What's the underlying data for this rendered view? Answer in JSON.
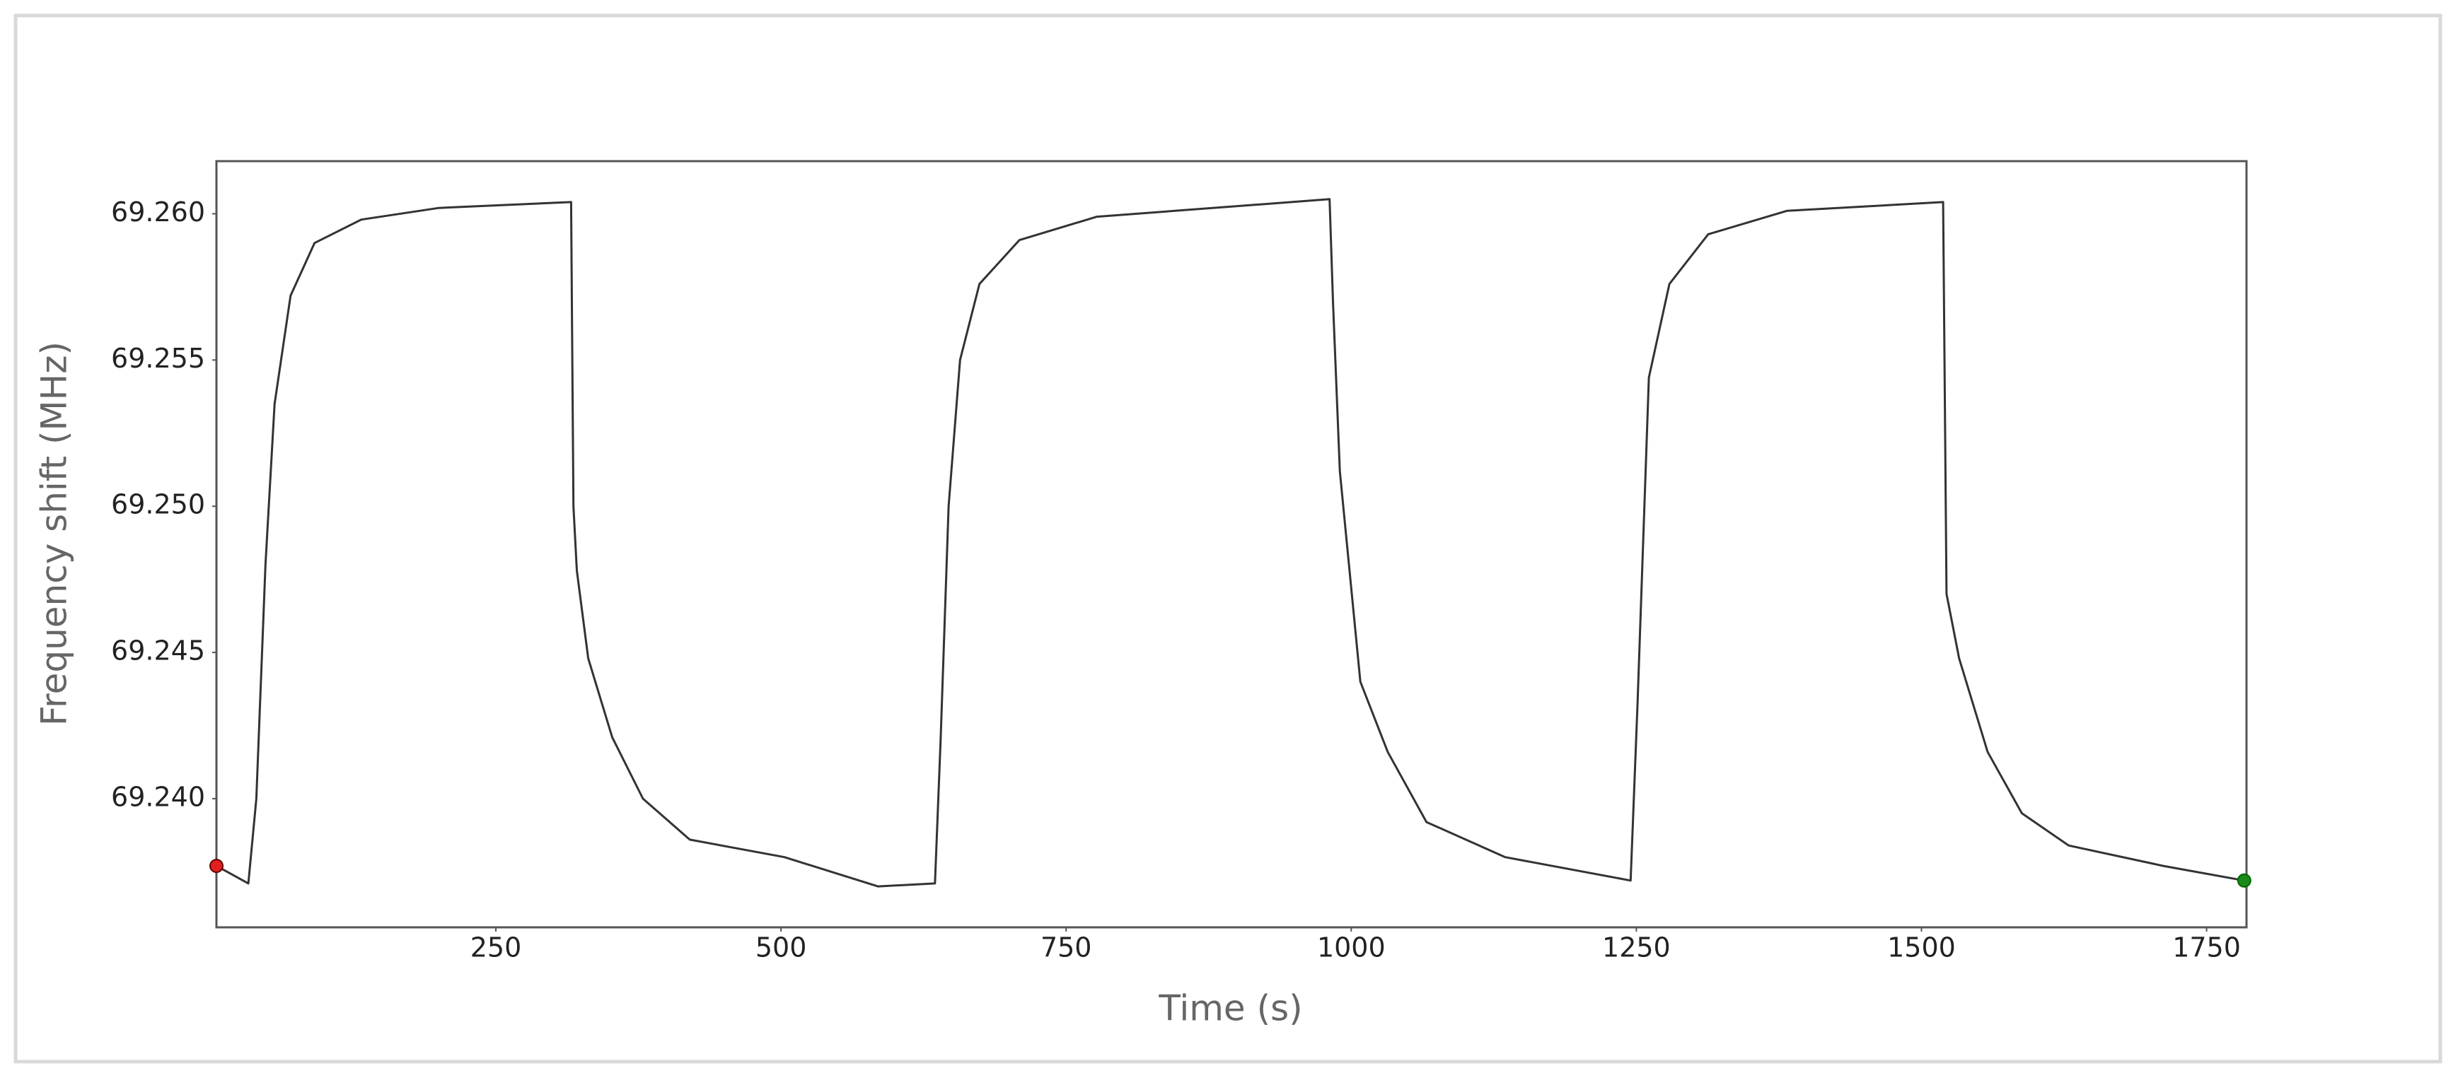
{
  "chart_data": {
    "type": "line",
    "xlabel": "Time (s)",
    "ylabel": "Frequency shift (MHz)",
    "x": [
      5,
      33,
      40,
      48,
      56,
      70,
      91,
      132,
      200,
      316,
      318,
      321,
      331,
      352,
      379,
      420,
      503,
      585,
      635,
      640,
      647,
      657,
      674,
      709,
      777,
      981,
      984,
      990,
      1008,
      1032,
      1066,
      1135,
      1245,
      1251,
      1261,
      1279,
      1313,
      1382,
      1519,
      1522,
      1533,
      1558,
      1588,
      1629,
      1712,
      1783
    ],
    "values": [
      69.2377,
      69.2371,
      69.24,
      69.248,
      69.2535,
      69.2572,
      69.259,
      69.2598,
      69.2602,
      69.2604,
      69.25,
      69.2478,
      69.2448,
      69.2421,
      69.24,
      69.2386,
      69.238,
      69.237,
      69.2371,
      69.242,
      69.25,
      69.255,
      69.2576,
      69.2591,
      69.2599,
      69.2605,
      69.257,
      69.2512,
      69.244,
      69.2416,
      69.2392,
      69.238,
      69.2372,
      69.2432,
      69.2544,
      69.2576,
      69.2593,
      69.2601,
      69.2604,
      69.247,
      69.2448,
      69.2416,
      69.2395,
      69.2384,
      69.2377,
      69.2372
    ],
    "color": "#333333",
    "start_marker_color": "#e02020",
    "end_marker_color": "#1a8a1a",
    "xlim": [
      5,
      1785
    ],
    "ylim": [
      69.2356,
      69.2618
    ],
    "xticks": [
      250,
      500,
      750,
      1000,
      1250,
      1500,
      1750
    ],
    "yticks": [
      {
        "value": 69.26,
        "label": "69.260"
      },
      69.255,
      {
        "value": 69.25,
        "label": "69.250"
      },
      69.245,
      {
        "value": 69.24,
        "label": "69.240"
      }
    ],
    "grid": false
  }
}
